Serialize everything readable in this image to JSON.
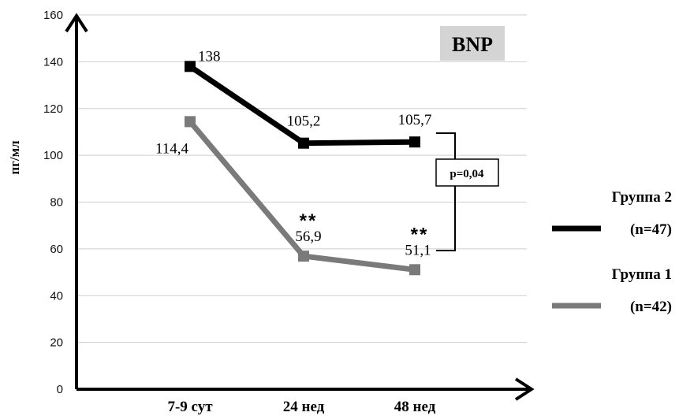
{
  "chart_data": {
    "type": "line",
    "title": "BNP",
    "ylabel": "пг/мл",
    "xlabel": "",
    "ylim": [
      0,
      160
    ],
    "yticks": [
      0,
      20,
      40,
      60,
      80,
      100,
      120,
      140,
      160
    ],
    "categories": [
      "7-9 сут",
      "24 нед",
      "48 нед"
    ],
    "grid": "horizontal",
    "legend_position": "right",
    "series": [
      {
        "name": "Группа 2",
        "n_label": "(n=47)",
        "color": "#000000",
        "values": [
          138,
          105.2,
          105.7
        ],
        "labels": [
          "138",
          "105,2",
          "105,7"
        ]
      },
      {
        "name": "Группа 1",
        "n_label": "(n=42)",
        "color": "#7a7a7a",
        "values": [
          114.4,
          56.9,
          51.1
        ],
        "labels": [
          "114,4",
          "56,9",
          "51,1"
        ]
      }
    ],
    "significance_marks": [
      {
        "category": "24 нед",
        "text": "**"
      },
      {
        "category": "48 нед",
        "text": "**"
      }
    ],
    "bracket_annotation": "p=0,04"
  }
}
